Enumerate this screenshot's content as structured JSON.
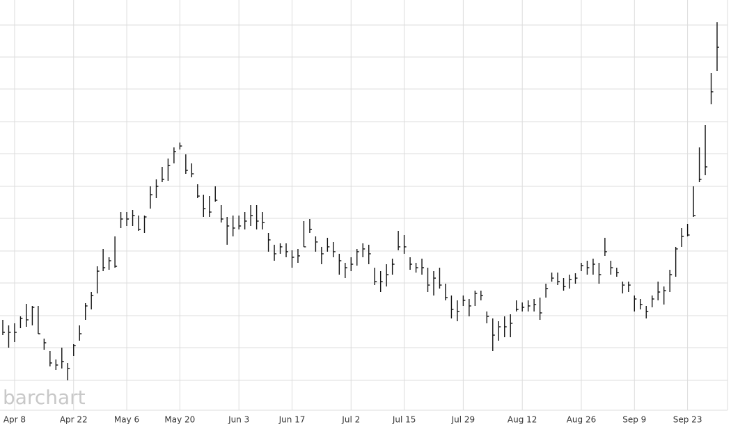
{
  "chart_data": {
    "type": "ohlc",
    "watermark": "barchart",
    "color": "#111111",
    "grid": true,
    "categories": [
      null,
      null,
      "Apr 8",
      null,
      null,
      null,
      null,
      null,
      null,
      null,
      null,
      null,
      "Apr 22",
      null,
      null,
      null,
      null,
      null,
      null,
      null,
      null,
      "May 6",
      null,
      null,
      null,
      null,
      null,
      null,
      null,
      null,
      "May 20",
      null,
      null,
      null,
      null,
      null,
      null,
      null,
      null,
      null,
      "Jun 3",
      null,
      null,
      null,
      null,
      null,
      null,
      null,
      null,
      "Jun 17",
      null,
      null,
      null,
      null,
      null,
      null,
      null,
      null,
      null,
      "Jul 2",
      null,
      null,
      null,
      null,
      null,
      null,
      null,
      null,
      "Jul 15",
      null,
      null,
      null,
      null,
      null,
      null,
      null,
      null,
      null,
      "Jul 29",
      null,
      null,
      null,
      null,
      null,
      null,
      null,
      null,
      null,
      "Aug 12",
      null,
      null,
      null,
      null,
      null,
      null,
      null,
      null,
      null,
      "Aug 26",
      null,
      null,
      null,
      null,
      null,
      null,
      null,
      null,
      "Sep 9",
      null,
      null,
      null,
      null,
      null,
      null,
      null,
      null,
      "Sep 23",
      null,
      null,
      null,
      null,
      null
    ],
    "high": [
      140,
      132,
      135,
      145,
      163,
      160,
      160,
      113,
      95,
      83,
      100,
      78,
      105,
      132,
      164,
      180,
      217,
      242,
      230,
      260,
      295,
      295,
      298,
      290,
      290,
      332,
      342,
      360,
      372,
      388,
      395,
      378,
      365,
      335,
      320,
      318,
      332,
      305,
      288,
      290,
      290,
      295,
      305,
      305,
      295,
      265,
      248,
      250,
      250,
      240,
      242,
      282,
      285,
      260,
      245,
      258,
      252,
      235,
      222,
      230,
      242,
      250,
      248,
      215,
      210,
      220,
      228,
      268,
      262,
      230,
      222,
      228,
      215,
      210,
      215,
      192,
      175,
      168,
      175,
      170,
      182,
      182,
      152,
      142,
      138,
      145,
      148,
      168,
      165,
      168,
      170,
      172,
      192,
      208,
      208,
      200,
      205,
      207,
      222,
      225,
      228,
      222,
      258,
      225,
      215,
      195,
      195,
      175,
      170,
      160,
      175,
      195,
      188,
      212,
      245,
      272,
      278,
      332,
      388,
      420,
      495,
      568
    ],
    "low": [
      118,
      100,
      108,
      128,
      130,
      132,
      120,
      97,
      73,
      68,
      70,
      53,
      88,
      110,
      140,
      155,
      178,
      210,
      212,
      215,
      272,
      275,
      275,
      268,
      265,
      300,
      315,
      338,
      340,
      365,
      385,
      350,
      345,
      315,
      288,
      288,
      310,
      280,
      248,
      260,
      270,
      270,
      275,
      270,
      270,
      238,
      225,
      235,
      230,
      215,
      222,
      245,
      265,
      238,
      220,
      238,
      230,
      205,
      200,
      210,
      218,
      230,
      220,
      190,
      180,
      188,
      205,
      240,
      235,
      212,
      208,
      205,
      180,
      175,
      185,
      168,
      142,
      138,
      160,
      145,
      160,
      168,
      135,
      95,
      110,
      115,
      115,
      152,
      152,
      152,
      152,
      140,
      172,
      195,
      190,
      182,
      185,
      192,
      210,
      205,
      205,
      192,
      232,
      205,
      202,
      178,
      180,
      152,
      155,
      142,
      158,
      168,
      162,
      180,
      202,
      245,
      260,
      288,
      338,
      348,
      450,
      498
    ],
    "close": [
      122,
      122,
      122,
      142,
      140,
      158,
      120,
      107,
      78,
      75,
      80,
      70,
      103,
      120,
      160,
      175,
      210,
      215,
      225,
      217,
      285,
      285,
      290,
      270,
      288,
      320,
      332,
      342,
      362,
      382,
      390,
      355,
      350,
      318,
      300,
      295,
      312,
      285,
      275,
      272,
      275,
      282,
      290,
      282,
      280,
      255,
      235,
      245,
      238,
      230,
      232,
      245,
      270,
      252,
      235,
      245,
      238,
      225,
      215,
      220,
      238,
      242,
      235,
      195,
      195,
      205,
      220,
      245,
      245,
      220,
      215,
      215,
      190,
      200,
      190,
      172,
      155,
      152,
      168,
      160,
      178,
      175,
      145,
      118,
      130,
      130,
      135,
      155,
      158,
      160,
      162,
      150,
      185,
      200,
      195,
      188,
      198,
      200,
      218,
      215,
      220,
      205,
      238,
      215,
      208,
      190,
      190,
      170,
      162,
      152,
      170,
      180,
      182,
      205,
      242,
      260,
      262,
      290,
      342,
      360,
      468,
      532
    ],
    "ylim": [
      10,
      600
    ],
    "yticks": [
      53,
      100,
      146,
      193,
      239,
      286,
      332,
      379,
      425,
      472,
      518,
      564
    ]
  }
}
